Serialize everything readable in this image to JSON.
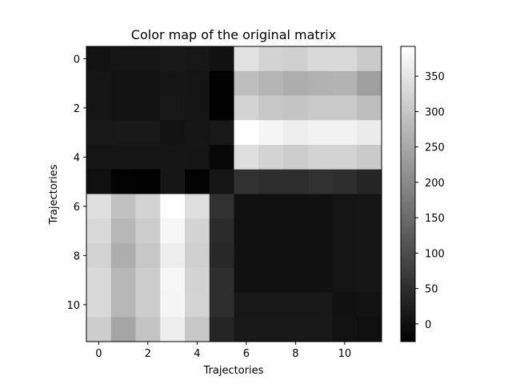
{
  "chart_data": {
    "type": "heatmap",
    "title": "Color map of the original matrix",
    "xlabel": "Trajectories",
    "ylabel": "Trajectories",
    "colormap": "gray",
    "x_ticks": [
      "0",
      "2",
      "4",
      "6",
      "8",
      "10"
    ],
    "y_ticks": [
      "0",
      "2",
      "4",
      "6",
      "8",
      "10"
    ],
    "colorbar_ticks": [
      "0",
      "50",
      "100",
      "150",
      "200",
      "250",
      "300",
      "350"
    ],
    "vmin": -25,
    "vmax": 392,
    "rows": 12,
    "cols": 12,
    "matrix": [
      [
        5,
        10,
        10,
        15,
        12,
        3,
        345,
        320,
        315,
        330,
        330,
        305
      ],
      [
        8,
        6,
        6,
        10,
        8,
        -22,
        285,
        270,
        260,
        265,
        268,
        235
      ],
      [
        8,
        6,
        6,
        12,
        8,
        -22,
        320,
        300,
        295,
        305,
        305,
        285
      ],
      [
        12,
        15,
        15,
        6,
        10,
        15,
        392,
        375,
        365,
        370,
        370,
        360
      ],
      [
        8,
        8,
        8,
        10,
        8,
        -12,
        340,
        320,
        310,
        320,
        320,
        305
      ],
      [
        0,
        -20,
        -22,
        10,
        -20,
        10,
        55,
        50,
        50,
        55,
        50,
        35
      ],
      [
        340,
        290,
        320,
        392,
        340,
        55,
        3,
        3,
        3,
        3,
        8,
        10
      ],
      [
        330,
        275,
        310,
        378,
        320,
        45,
        3,
        3,
        3,
        3,
        8,
        10
      ],
      [
        320,
        260,
        300,
        365,
        315,
        40,
        3,
        3,
        3,
        3,
        8,
        10
      ],
      [
        330,
        275,
        310,
        378,
        320,
        50,
        3,
        3,
        3,
        3,
        8,
        10
      ],
      [
        330,
        275,
        310,
        375,
        322,
        50,
        12,
        12,
        12,
        12,
        3,
        5
      ],
      [
        310,
        245,
        295,
        365,
        300,
        35,
        15,
        15,
        15,
        15,
        5,
        0
      ]
    ]
  }
}
